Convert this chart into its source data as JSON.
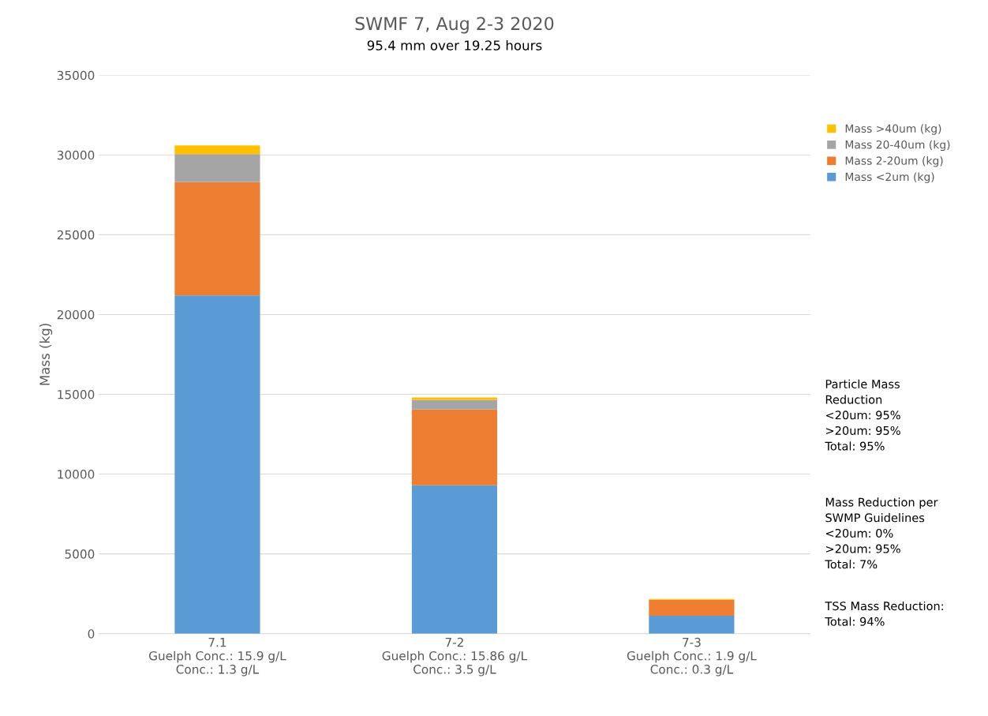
{
  "chart_data": {
    "type": "bar",
    "stacked": true,
    "title": "SWMF 7, Aug 2-3 2020",
    "subtitle": "95.4 mm over 19.25 hours",
    "ylabel": "Mass (kg)",
    "categories": [
      "7.1\nGuelph Conc.: 15.9 g/L\nConc.: 1.3 g/L",
      "7-2\nGuelph Conc.: 15.86 g/L\nConc.: 3.5 g/L",
      "7-3\nGuelph Conc.: 1.9 g/L\nConc.: 0.3 g/L"
    ],
    "series": [
      {
        "name": "Mass <2um (kg)",
        "color": "#5b9bd5",
        "values": [
          21200,
          9300,
          1120
        ]
      },
      {
        "name": "Mass 2-20um (kg)",
        "color": "#ed7d31",
        "values": [
          7100,
          4750,
          1000
        ]
      },
      {
        "name": "Mass 20-40um (kg)",
        "color": "#a5a5a5",
        "values": [
          1750,
          600,
          null
        ]
      },
      {
        "name": "Mass >40um (kg)",
        "color": "#ffc000",
        "values": [
          550,
          150,
          50
        ]
      }
    ],
    "ylim": [
      0,
      35000
    ],
    "yticks": [
      0,
      5000,
      10000,
      15000,
      20000,
      25000,
      30000,
      35000
    ],
    "grid": "y",
    "legend": "top right",
    "annotations": [
      "Particle Mass\nReduction\n<20um: 95%\n>20um: 95%\nTotal: 95%",
      "Mass Reduction per\nSWMP Guidelines\n<20um: 0%\n>20um: 95%\nTotal: 7%",
      "TSS Mass Reduction:\nTotal: 94%"
    ]
  }
}
